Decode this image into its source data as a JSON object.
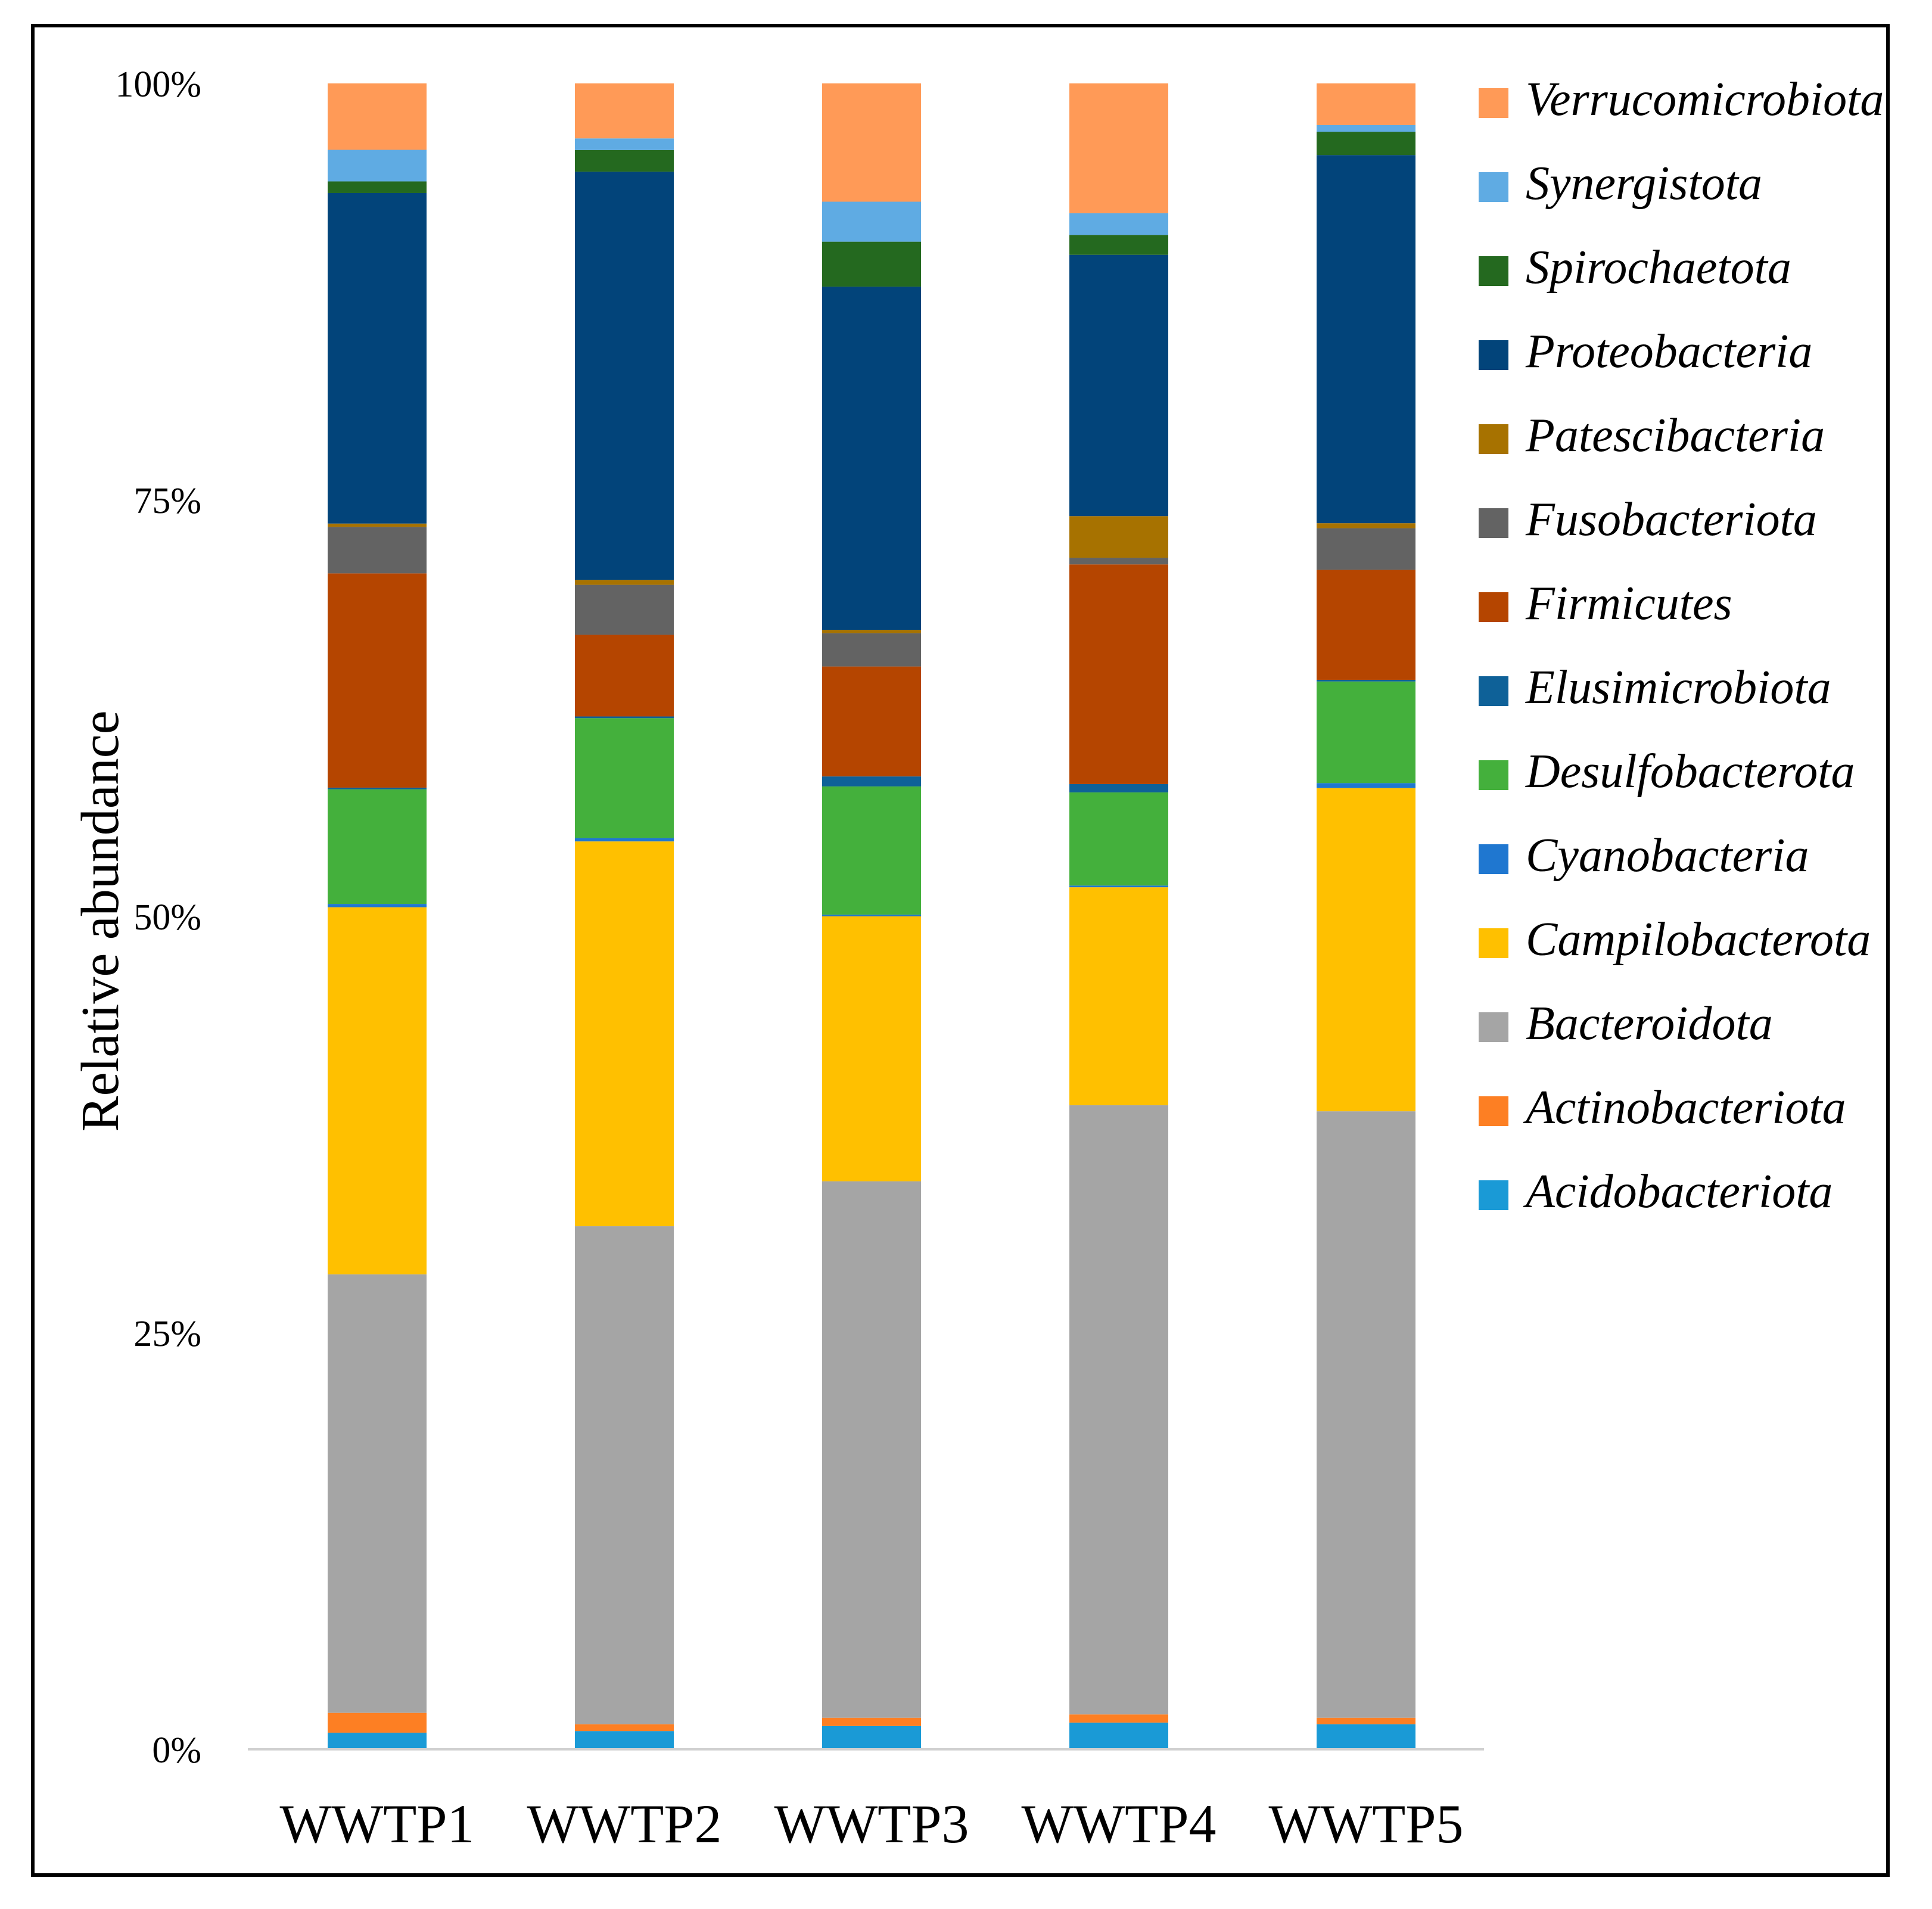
{
  "chart_data": {
    "type": "bar",
    "stacked": true,
    "normalized": true,
    "title": "",
    "xlabel": "",
    "ylabel": "Relative abundance",
    "ylim": [
      0,
      100
    ],
    "yticks": [
      "0%",
      "25%",
      "50%",
      "75%",
      "100%"
    ],
    "grid": false,
    "legend_position": "right",
    "categories": [
      "WWTP1",
      "WWTP2",
      "WWTP3",
      "WWTP4",
      "WWTP5"
    ],
    "series": [
      {
        "name": "Acidobacteriota",
        "color": "#1a9ad6",
        "values": [
          1.0,
          1.1,
          1.4,
          1.6,
          1.5
        ]
      },
      {
        "name": "Actinobacteriota",
        "color": "#fd7f23",
        "values": [
          1.2,
          0.4,
          0.5,
          0.5,
          0.4
        ]
      },
      {
        "name": "Bacteroidota",
        "color": "#a5a5a5",
        "values": [
          26.4,
          29.9,
          32.2,
          36.6,
          36.4
        ]
      },
      {
        "name": "Campilobacterota",
        "color": "#ffc000",
        "values": [
          22.1,
          23.1,
          15.9,
          13.1,
          19.4
        ]
      },
      {
        "name": "Cyanobacteria",
        "color": "#1f77d0",
        "values": [
          0.2,
          0.2,
          0.1,
          0.1,
          0.3
        ]
      },
      {
        "name": "Desulfobacterota",
        "color": "#44b03c",
        "values": [
          6.9,
          7.2,
          7.7,
          5.6,
          6.1
        ]
      },
      {
        "name": "Elusimicrobiota",
        "color": "#0e6198",
        "values": [
          0.1,
          0.1,
          0.6,
          0.5,
          0.1
        ]
      },
      {
        "name": "Firmicutes",
        "color": "#b54500",
        "values": [
          12.9,
          4.9,
          6.6,
          13.2,
          6.6
        ]
      },
      {
        "name": "Fusobacteriota",
        "color": "#636363",
        "values": [
          2.8,
          3.0,
          2.0,
          0.4,
          2.5
        ]
      },
      {
        "name": "Patescibacteria",
        "color": "#a77200",
        "values": [
          0.2,
          0.3,
          0.2,
          2.5,
          0.3
        ]
      },
      {
        "name": "Proteobacteria",
        "color": "#02447a",
        "values": [
          19.9,
          24.5,
          20.6,
          15.7,
          22.1
        ]
      },
      {
        "name": "Spirochaetota",
        "color": "#24691f",
        "values": [
          0.7,
          1.3,
          2.7,
          1.2,
          1.4
        ]
      },
      {
        "name": "Synergistota",
        "color": "#5fabe3",
        "values": [
          1.9,
          0.7,
          2.4,
          1.3,
          0.4
        ]
      },
      {
        "name": "Verrucomicrobiota",
        "color": "#ff9a57",
        "values": [
          4.0,
          3.3,
          7.1,
          7.8,
          2.5
        ]
      }
    ]
  }
}
